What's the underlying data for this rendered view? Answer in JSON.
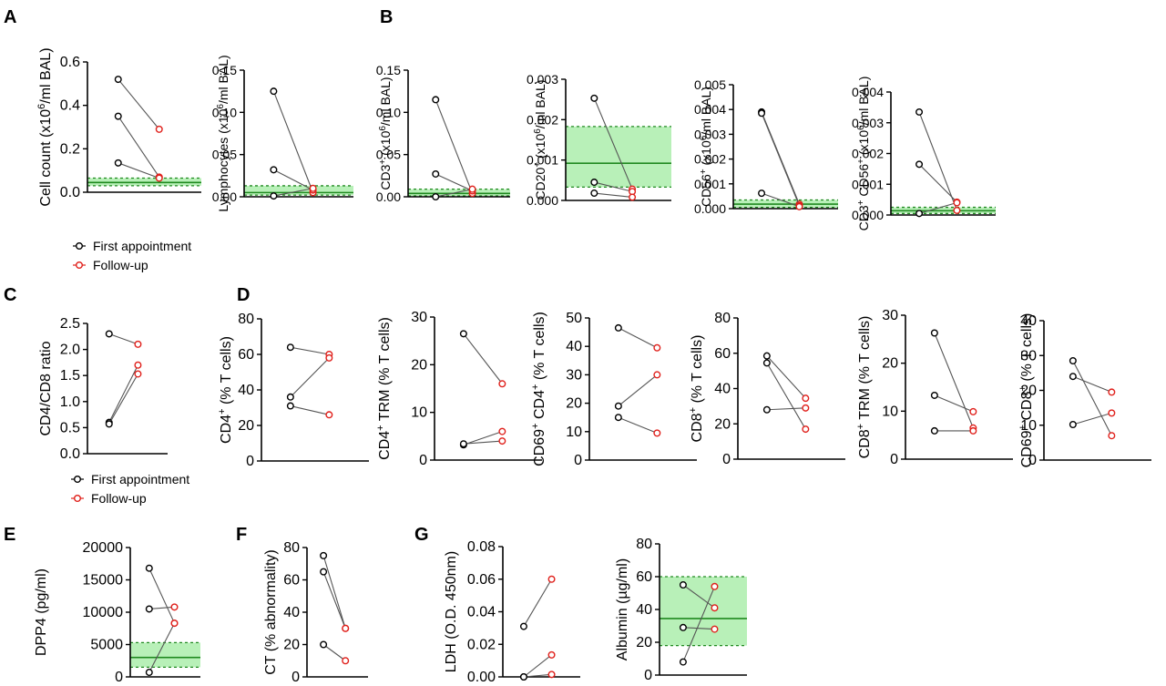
{
  "panel_letters": [
    "A",
    "B",
    "C",
    "D",
    "E",
    "F",
    "G"
  ],
  "legend": {
    "first": "First appointment",
    "follow": "Follow-up"
  },
  "colors": {
    "first": "#000000",
    "follow": "#e0201b",
    "band_fill": "#b8f0b8",
    "band_line": "#208a20",
    "pair_line": "#555555"
  },
  "chart_data": [
    {
      "panel": "A",
      "type": "scatter",
      "ylabel": "Cell count (x10^6/ml BAL)",
      "ylim": [
        0,
        0.6
      ],
      "ticks": [
        "0.0",
        "0.2",
        "0.4",
        "0.6"
      ],
      "pairs": [
        [
          0.52,
          0.29
        ],
        [
          0.35,
          0.07
        ],
        [
          0.135,
          0.065
        ]
      ],
      "reference_band": {
        "low": 0.03,
        "median": 0.045,
        "high": 0.065
      }
    },
    {
      "panel": "A",
      "type": "scatter",
      "ylabel": "Lymphocytes (x10^6/ml BAL)",
      "ylim": [
        0,
        0.15
      ],
      "ticks": [
        "0.00",
        "0.05",
        "0.10",
        "0.15"
      ],
      "pairs": [
        [
          0.125,
          0.005
        ],
        [
          0.032,
          0.008
        ],
        [
          0.001,
          0.01
        ]
      ],
      "reference_band": {
        "low": 0.002,
        "median": 0.005,
        "high": 0.013
      }
    },
    {
      "panel": "B",
      "type": "scatter",
      "ylabel": "CD3+ (x10^6/ml BAL)",
      "ylim": [
        0,
        0.15
      ],
      "ticks": [
        "0.00",
        "0.05",
        "0.10",
        "0.15"
      ],
      "pairs": [
        [
          0.115,
          0.004
        ],
        [
          0.027,
          0.007
        ],
        [
          0.0,
          0.009
        ]
      ],
      "reference_band": {
        "low": 0.001,
        "median": 0.004,
        "high": 0.009
      }
    },
    {
      "panel": "B",
      "type": "scatter",
      "ylabel": "CD20+ (x10^6/ml BAL)",
      "ylim": [
        0,
        0.003
      ],
      "ticks": [
        "0.000",
        "0.001",
        "0.002",
        "0.003"
      ],
      "pairs": [
        [
          0.00253,
          0.00028
        ],
        [
          0.00045,
          0.00022
        ],
        [
          0.00018,
          8e-05
        ]
      ],
      "reference_band": {
        "low": 0.00033,
        "median": 0.00092,
        "high": 0.00183
      }
    },
    {
      "panel": "B",
      "type": "scatter",
      "ylabel": "CD56+ (x10^6/ml BAL)",
      "ylim": [
        0,
        0.005
      ],
      "ticks": [
        "0.000",
        "0.001",
        "0.002",
        "0.003",
        "0.004",
        "0.005"
      ],
      "pairs": [
        [
          0.0039,
          0.00018
        ],
        [
          0.00385,
          0.00012
        ],
        [
          0.00062,
          8e-05
        ]
      ],
      "reference_band": {
        "low": 5e-05,
        "median": 0.00018,
        "high": 0.00035
      }
    },
    {
      "panel": "B",
      "type": "scatter",
      "ylabel": "CD3+ CD56+ (x10^6/ml BAL)",
      "ylim": [
        0,
        0.004
      ],
      "ticks": [
        "0.000",
        "0.001",
        "0.002",
        "0.003",
        "0.004"
      ],
      "pairs": [
        [
          0.00335,
          0.00015
        ],
        [
          0.00165,
          0.00042
        ],
        [
          5e-05,
          0.0004
        ]
      ],
      "reference_band": {
        "low": 5e-05,
        "median": 0.00014,
        "high": 0.00025
      }
    },
    {
      "panel": "C",
      "type": "scatter",
      "ylabel": "CD4/CD8 ratio",
      "ylim": [
        0,
        2.5
      ],
      "ticks": [
        "0.0",
        "0.5",
        "1.0",
        "1.5",
        "2.0",
        "2.5"
      ],
      "pairs": [
        [
          2.3,
          2.1
        ],
        [
          0.6,
          1.7
        ],
        [
          0.57,
          1.53
        ]
      ]
    },
    {
      "panel": "D",
      "type": "scatter",
      "ylabel": "CD4+ (% T cells)",
      "ylim": [
        0,
        80
      ],
      "ticks": [
        "0",
        "20",
        "40",
        "60",
        "80"
      ],
      "pairs": [
        [
          64,
          60
        ],
        [
          36,
          58
        ],
        [
          31,
          26
        ]
      ]
    },
    {
      "panel": "D",
      "type": "scatter",
      "ylabel": "CD4+ TRM (% T cells)",
      "ylim": [
        0,
        30
      ],
      "ticks": [
        "0",
        "10",
        "20",
        "30"
      ],
      "pairs": [
        [
          26.5,
          16
        ],
        [
          3.2,
          6
        ],
        [
          3.4,
          4
        ]
      ]
    },
    {
      "panel": "D",
      "type": "scatter",
      "ylabel": "CD69+ CD4+ (% T cells)",
      "ylim": [
        0,
        50
      ],
      "ticks": [
        "0",
        "10",
        "20",
        "30",
        "40",
        "50"
      ],
      "pairs": [
        [
          46.5,
          39.5
        ],
        [
          19,
          30
        ],
        [
          15,
          9.5
        ]
      ]
    },
    {
      "panel": "D",
      "type": "scatter",
      "ylabel": "CD8+ (% T cells)",
      "ylim": [
        0,
        80
      ],
      "ticks": [
        "0",
        "20",
        "40",
        "60",
        "80"
      ],
      "pairs": [
        [
          58.5,
          34.5
        ],
        [
          54.5,
          17
        ],
        [
          28,
          29
        ]
      ]
    },
    {
      "panel": "D",
      "type": "scatter",
      "ylabel": "CD8+ TRM (% T cells)",
      "ylim": [
        0,
        30
      ],
      "ticks": [
        "0",
        "10",
        "20",
        "30"
      ],
      "pairs": [
        [
          26.3,
          6.5
        ],
        [
          13.3,
          9.9
        ],
        [
          5.9,
          5.9
        ]
      ]
    },
    {
      "panel": "D",
      "type": "scatter",
      "ylabel": "CD69+ CD8+ (% T cells)",
      "ylim": [
        0,
        40
      ],
      "ticks": [
        "0",
        "10",
        "20",
        "30",
        "40"
      ],
      "pairs": [
        [
          28.5,
          7
        ],
        [
          24,
          19.5
        ],
        [
          10.2,
          13.5
        ]
      ]
    },
    {
      "panel": "E",
      "type": "scatter",
      "ylabel": "DPP4 (pg/ml)",
      "ylim": [
        0,
        20000
      ],
      "ticks": [
        "0",
        "5000",
        "10000",
        "15000",
        "20000"
      ],
      "pairs": [
        [
          16800,
          8300
        ],
        [
          10500,
          10800
        ],
        [
          700,
          8300
        ]
      ],
      "reference_band": {
        "low": 1500,
        "median": 3000,
        "high": 5300
      }
    },
    {
      "panel": "F",
      "type": "scatter",
      "ylabel": "CT (% abnormality)",
      "ylim": [
        0,
        80
      ],
      "ticks": [
        "0",
        "20",
        "40",
        "60",
        "80"
      ],
      "pairs": [
        [
          75,
          30
        ],
        [
          65,
          30
        ],
        [
          20,
          10
        ]
      ]
    },
    {
      "panel": "G",
      "type": "scatter",
      "ylabel": "LDH (O.D. 450nm)",
      "ylim": [
        0,
        0.08
      ],
      "ticks": [
        "0.00",
        "0.02",
        "0.04",
        "0.06",
        "0.08"
      ],
      "pairs": [
        [
          0.031,
          0.06
        ],
        [
          0.0,
          0.0135
        ],
        [
          0.0,
          0.0015
        ]
      ]
    },
    {
      "panel": "G",
      "type": "scatter",
      "ylabel": "Albumin (µg/ml)",
      "ylim": [
        0,
        80
      ],
      "ticks": [
        "0",
        "20",
        "40",
        "60",
        "80"
      ],
      "pairs": [
        [
          55,
          41
        ],
        [
          29,
          28
        ],
        [
          8,
          54
        ]
      ],
      "reference_band": {
        "low": 18,
        "median": 34.5,
        "high": 60
      }
    }
  ]
}
